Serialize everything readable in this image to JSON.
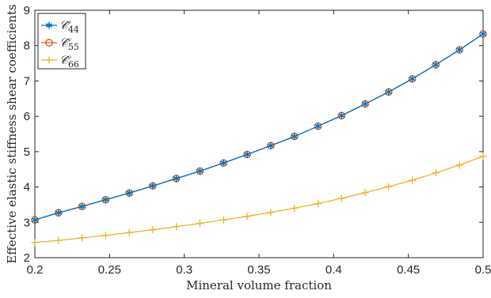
{
  "chart_data": {
    "type": "line",
    "xlabel": "Mineral volume fraction",
    "ylabel": "Effective elastic stiffness shear coefficients",
    "xlim": [
      0.2,
      0.5
    ],
    "ylim": [
      2,
      9
    ],
    "xticks": [
      "0.2",
      "0.25",
      "0.3",
      "0.35",
      "0.4",
      "0.45",
      "0.5"
    ],
    "yticks": [
      "2",
      "3",
      "4",
      "5",
      "6",
      "7",
      "8",
      "9"
    ],
    "grid": false,
    "legend_position": "top-left",
    "x": [
      0.2,
      0.2158,
      0.2316,
      0.2474,
      0.2632,
      0.2789,
      0.2947,
      0.3105,
      0.3263,
      0.3421,
      0.3579,
      0.3737,
      0.3895,
      0.4053,
      0.4211,
      0.4368,
      0.4526,
      0.4684,
      0.4842,
      0.5
    ],
    "series": [
      {
        "name": "𝒞̂",
        "subscript": "44",
        "color": "#0072BD",
        "marker": "asterisk",
        "values": [
          3.07,
          3.27,
          3.45,
          3.64,
          3.83,
          4.03,
          4.24,
          4.45,
          4.68,
          4.92,
          5.17,
          5.43,
          5.72,
          6.02,
          6.35,
          6.69,
          7.06,
          7.46,
          7.88,
          8.33
        ]
      },
      {
        "name": "𝒞̂",
        "subscript": "55",
        "color": "#D95319",
        "marker": "circle",
        "values": [
          3.07,
          3.27,
          3.45,
          3.64,
          3.83,
          4.03,
          4.24,
          4.45,
          4.68,
          4.92,
          5.17,
          5.43,
          5.72,
          6.02,
          6.35,
          6.69,
          7.06,
          7.46,
          7.88,
          8.33
        ]
      },
      {
        "name": "𝒞̂",
        "subscript": "66",
        "color": "#EDB120",
        "marker": "plus",
        "values": [
          2.43,
          2.49,
          2.56,
          2.63,
          2.71,
          2.79,
          2.88,
          2.97,
          3.07,
          3.17,
          3.28,
          3.4,
          3.53,
          3.68,
          3.84,
          4.01,
          4.19,
          4.4,
          4.62,
          4.87
        ]
      }
    ]
  }
}
